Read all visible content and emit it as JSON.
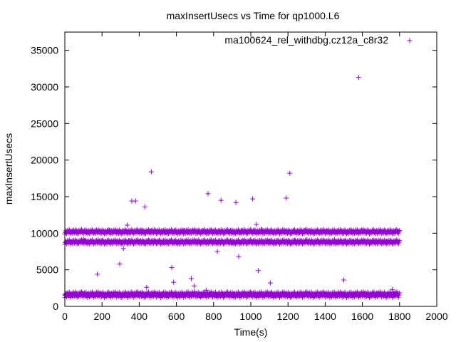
{
  "chart_data": {
    "type": "scatter",
    "title": "maxInsertUsecs vs Time for qp1000.L6",
    "xlabel": "Time(s)",
    "ylabel": "maxInsertUsecs",
    "xlim": [
      0,
      2000
    ],
    "ylim": [
      0,
      37500
    ],
    "x_ticks": [
      0,
      200,
      400,
      600,
      800,
      1000,
      1200,
      1400,
      1600,
      1800,
      2000
    ],
    "y_ticks": [
      0,
      5000,
      10000,
      15000,
      20000,
      25000,
      30000,
      35000
    ],
    "grid": false,
    "legend_position": "top-right",
    "marker": "+",
    "series": [
      {
        "name": "ma100624_rel_withdbg.cz12a_c8r32",
        "color": "#9400d3",
        "points": [
          [
            0,
            1600
          ],
          [
            5,
            10100
          ],
          [
            10,
            1700
          ],
          [
            20,
            1500
          ],
          [
            25,
            10300
          ],
          [
            30,
            1750
          ],
          [
            35,
            8800
          ],
          [
            40,
            1600
          ],
          [
            45,
            10200
          ],
          [
            55,
            9000
          ],
          [
            60,
            1700
          ],
          [
            65,
            10000
          ],
          [
            70,
            1550
          ],
          [
            75,
            8700
          ],
          [
            80,
            1650
          ],
          [
            90,
            10400
          ],
          [
            95,
            1800
          ],
          [
            100,
            9200
          ],
          [
            110,
            1600
          ],
          [
            115,
            10300
          ],
          [
            120,
            1700
          ],
          [
            130,
            10100
          ],
          [
            135,
            1500
          ],
          [
            140,
            8900
          ],
          [
            150,
            1750
          ],
          [
            160,
            10200
          ],
          [
            165,
            1600
          ],
          [
            170,
            10300
          ],
          [
            175,
            4400
          ],
          [
            180,
            1650
          ],
          [
            185,
            8800
          ],
          [
            190,
            1700
          ],
          [
            200,
            9000
          ],
          [
            210,
            10200
          ],
          [
            215,
            1600
          ],
          [
            220,
            8800
          ],
          [
            230,
            1700
          ],
          [
            240,
            10400
          ],
          [
            245,
            1550
          ],
          [
            250,
            10100
          ],
          [
            260,
            1700
          ],
          [
            270,
            10300
          ],
          [
            280,
            1650
          ],
          [
            290,
            10000
          ],
          [
            295,
            5800
          ],
          [
            300,
            1700
          ],
          [
            305,
            8800
          ],
          [
            310,
            10200
          ],
          [
            315,
            7900
          ],
          [
            320,
            1600
          ],
          [
            330,
            10300
          ],
          [
            335,
            11100
          ],
          [
            340,
            1750
          ],
          [
            345,
            9000
          ],
          [
            350,
            10100
          ],
          [
            360,
            14400
          ],
          [
            365,
            1600
          ],
          [
            370,
            8600
          ],
          [
            375,
            10300
          ],
          [
            380,
            14400
          ],
          [
            385,
            1700
          ],
          [
            390,
            10200
          ],
          [
            400,
            1650
          ],
          [
            410,
            10400
          ],
          [
            415,
            1800
          ],
          [
            420,
            10200
          ],
          [
            430,
            13600
          ],
          [
            435,
            1600
          ],
          [
            440,
            2600
          ],
          [
            445,
            8800
          ],
          [
            450,
            1700
          ],
          [
            455,
            9000
          ],
          [
            460,
            10300
          ],
          [
            465,
            18400
          ],
          [
            470,
            1500
          ],
          [
            480,
            8900
          ],
          [
            490,
            10200
          ],
          [
            500,
            1650
          ],
          [
            510,
            9000
          ],
          [
            520,
            10300
          ],
          [
            525,
            1700
          ],
          [
            530,
            8700
          ],
          [
            540,
            10100
          ],
          [
            550,
            1600
          ],
          [
            560,
            10200
          ],
          [
            570,
            8900
          ],
          [
            575,
            5300
          ],
          [
            580,
            1700
          ],
          [
            585,
            3300
          ],
          [
            590,
            10300
          ],
          [
            600,
            1650
          ],
          [
            610,
            8800
          ],
          [
            620,
            10200
          ],
          [
            630,
            1700
          ],
          [
            640,
            10400
          ],
          [
            650,
            8900
          ],
          [
            660,
            10100
          ],
          [
            670,
            1600
          ],
          [
            680,
            3800
          ],
          [
            690,
            10300
          ],
          [
            695,
            2800
          ],
          [
            700,
            1700
          ],
          [
            710,
            8900
          ],
          [
            720,
            10200
          ],
          [
            730,
            1650
          ],
          [
            740,
            10300
          ],
          [
            750,
            8800
          ],
          [
            760,
            2200
          ],
          [
            765,
            10100
          ],
          [
            770,
            15400
          ],
          [
            780,
            1700
          ],
          [
            790,
            10300
          ],
          [
            800,
            8900
          ],
          [
            810,
            1600
          ],
          [
            820,
            7500
          ],
          [
            830,
            10200
          ],
          [
            840,
            14500
          ],
          [
            850,
            1700
          ],
          [
            860,
            10100
          ],
          [
            870,
            8800
          ],
          [
            880,
            1650
          ],
          [
            890,
            10300
          ],
          [
            900,
            8700
          ],
          [
            910,
            1700
          ],
          [
            920,
            14200
          ],
          [
            930,
            10200
          ],
          [
            935,
            6800
          ],
          [
            940,
            1600
          ],
          [
            950,
            10400
          ],
          [
            960,
            8900
          ],
          [
            970,
            1700
          ],
          [
            980,
            10100
          ],
          [
            990,
            8800
          ],
          [
            1000,
            1650
          ],
          [
            1010,
            14700
          ],
          [
            1020,
            10300
          ],
          [
            1030,
            11200
          ],
          [
            1040,
            4900
          ],
          [
            1045,
            1700
          ],
          [
            1050,
            10200
          ],
          [
            1060,
            10500
          ],
          [
            1070,
            8800
          ],
          [
            1080,
            1600
          ],
          [
            1090,
            10300
          ],
          [
            1100,
            8900
          ],
          [
            1105,
            3200
          ],
          [
            1110,
            1700
          ],
          [
            1120,
            10100
          ],
          [
            1130,
            8700
          ],
          [
            1140,
            1650
          ],
          [
            1150,
            10300
          ],
          [
            1160,
            8800
          ],
          [
            1170,
            1700
          ],
          [
            1180,
            10200
          ],
          [
            1190,
            14800
          ],
          [
            1200,
            8900
          ],
          [
            1210,
            18200
          ],
          [
            1220,
            1600
          ],
          [
            1230,
            10300
          ],
          [
            1240,
            9000
          ],
          [
            1250,
            1700
          ],
          [
            1260,
            10100
          ],
          [
            1270,
            8800
          ],
          [
            1280,
            1650
          ],
          [
            1290,
            10400
          ],
          [
            1300,
            8900
          ],
          [
            1310,
            1700
          ],
          [
            1320,
            10200
          ],
          [
            1330,
            8800
          ],
          [
            1340,
            1600
          ],
          [
            1350,
            10300
          ],
          [
            1360,
            9000
          ],
          [
            1370,
            1700
          ],
          [
            1380,
            10100
          ],
          [
            1390,
            8900
          ],
          [
            1400,
            1650
          ],
          [
            1410,
            10300
          ],
          [
            1420,
            8800
          ],
          [
            1430,
            1700
          ],
          [
            1440,
            10200
          ],
          [
            1450,
            9100
          ],
          [
            1460,
            1600
          ],
          [
            1470,
            8700
          ],
          [
            1480,
            10300
          ],
          [
            1490,
            1700
          ],
          [
            1500,
            3600
          ],
          [
            1510,
            8900
          ],
          [
            1520,
            10200
          ],
          [
            1530,
            1650
          ],
          [
            1540,
            10400
          ],
          [
            1550,
            8800
          ],
          [
            1560,
            1700
          ],
          [
            1570,
            10100
          ],
          [
            1580,
            31300
          ],
          [
            1590,
            1600
          ],
          [
            1600,
            10300
          ],
          [
            1610,
            8900
          ],
          [
            1620,
            1700
          ],
          [
            1630,
            10200
          ],
          [
            1640,
            8800
          ],
          [
            1650,
            1650
          ],
          [
            1660,
            10300
          ],
          [
            1670,
            9000
          ],
          [
            1680,
            1700
          ],
          [
            1690,
            10100
          ],
          [
            1700,
            8700
          ],
          [
            1710,
            1600
          ],
          [
            1720,
            10300
          ],
          [
            1730,
            8900
          ],
          [
            1740,
            1700
          ],
          [
            1750,
            10200
          ],
          [
            1760,
            2300
          ],
          [
            1770,
            1800
          ],
          [
            1780,
            10300
          ],
          [
            1790,
            1650
          ],
          [
            1795,
            10200
          ]
        ],
        "dense_bands": [
          {
            "x_range": [
              0,
              1800
            ],
            "y_range": [
              1200,
              2000
            ]
          },
          {
            "x_range": [
              0,
              1800
            ],
            "y_range": [
              9900,
              10500
            ]
          },
          {
            "x_range": [
              0,
              1800
            ],
            "y_range": [
              8500,
              9100
            ]
          }
        ]
      }
    ]
  }
}
